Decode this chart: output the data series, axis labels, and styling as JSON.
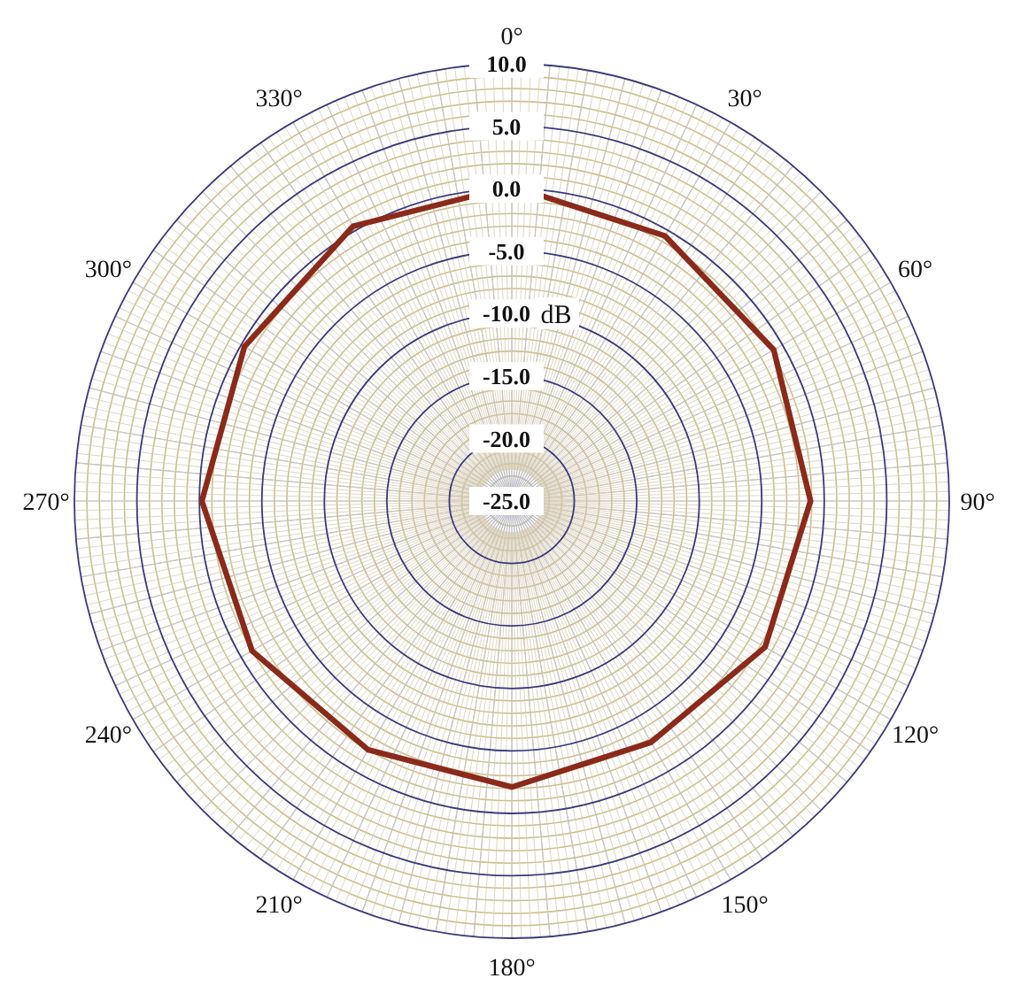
{
  "chart_data": {
    "type": "radar",
    "ylabel": "dB",
    "categories": [
      "0°",
      "30°",
      "60°",
      "90°",
      "120°",
      "150°",
      "180°",
      "210°",
      "240°",
      "270°",
      "300°",
      "330°"
    ],
    "series": [
      {
        "color": "#8b2a1a",
        "values": [
          0.2,
          -0.5,
          -0.8,
          -1.1,
          -1.6,
          -2.7,
          -2.1,
          -2.0,
          -1.0,
          -0.2,
          -0.3,
          0.4
        ]
      }
    ],
    "ylim": [
      -25,
      10
    ],
    "yticks": [
      {
        "value": -25,
        "label": "-25.0"
      },
      {
        "value": -20,
        "label": "-20.0"
      },
      {
        "value": -15,
        "label": "-15.0"
      },
      {
        "value": -10,
        "label": "-10.0"
      },
      {
        "value": -5,
        "label": "-5.0"
      },
      {
        "value": 0,
        "label": "0.0"
      },
      {
        "value": 5,
        "label": "5.0"
      },
      {
        "value": 10,
        "label": "10.0"
      }
    ],
    "grid": true
  }
}
